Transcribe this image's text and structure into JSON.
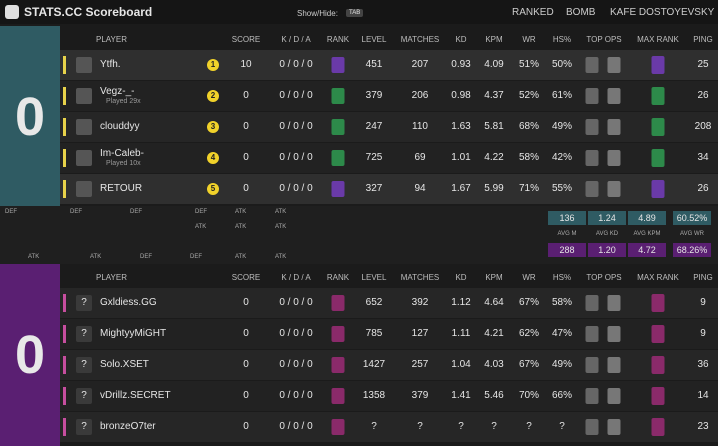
{
  "header": {
    "title": "STATS.CC Scoreboard",
    "show_hide": "Show/Hide:",
    "key": "TAB",
    "mode": "RANKED",
    "type": "BOMB",
    "map": "KAFE DOSTOYEVSKY"
  },
  "columns": [
    "PLAYER",
    "SCORE",
    "K / D / A",
    "RANK",
    "LEVEL",
    "MATCHES",
    "KD",
    "KPM",
    "WR",
    "HS%",
    "TOP OPS",
    "MAX RANK",
    "PING"
  ],
  "teams": [
    {
      "score": "0",
      "rows": [
        {
          "position": "1",
          "name": "Ytfh.",
          "note": null,
          "score": "10",
          "kda": "0 / 0 / 0",
          "level": "451",
          "matches": "207",
          "kd": "0.93",
          "kpm": "4.09",
          "wr": "51%",
          "hs": "50%",
          "ping": "25"
        },
        {
          "position": "2",
          "name": "Vegz-_-",
          "note": "Played 29x",
          "score": "0",
          "kda": "0 / 0 / 0",
          "level": "379",
          "matches": "206",
          "kd": "0.98",
          "kpm": "4.37",
          "wr": "52%",
          "hs": "61%",
          "ping": "26"
        },
        {
          "position": "3",
          "name": "clouddyy",
          "note": null,
          "score": "0",
          "kda": "0 / 0 / 0",
          "level": "247",
          "matches": "110",
          "kd": "1.63",
          "kpm": "5.81",
          "wr": "68%",
          "hs": "49%",
          "ping": "208"
        },
        {
          "position": "4",
          "name": "Im-Caleb-",
          "note": "Played 10x",
          "score": "0",
          "kda": "0 / 0 / 0",
          "level": "725",
          "matches": "69",
          "kd": "1.01",
          "kpm": "4.22",
          "wr": "58%",
          "hs": "42%",
          "ping": "34"
        },
        {
          "position": "5",
          "name": "RETOUR",
          "note": null,
          "score": "0",
          "kda": "0 / 0 / 0",
          "level": "327",
          "matches": "94",
          "kd": "1.67",
          "kpm": "5.99",
          "wr": "71%",
          "hs": "55%",
          "ping": "26"
        }
      ]
    },
    {
      "score": "0",
      "rows": [
        {
          "position": "?",
          "name": "Gxldiess.GG",
          "note": null,
          "score": "0",
          "kda": "0 / 0 / 0",
          "level": "652",
          "matches": "392",
          "kd": "1.12",
          "kpm": "4.64",
          "wr": "67%",
          "hs": "58%",
          "ping": "9"
        },
        {
          "position": "?",
          "name": "MightyyMiGHT",
          "note": null,
          "score": "0",
          "kda": "0 / 0 / 0",
          "level": "785",
          "matches": "127",
          "kd": "1.11",
          "kpm": "4.21",
          "wr": "62%",
          "hs": "47%",
          "ping": "9"
        },
        {
          "position": "?",
          "name": "Solo.XSET",
          "note": null,
          "score": "0",
          "kda": "0 / 0 / 0",
          "level": "1427",
          "matches": "257",
          "kd": "1.04",
          "kpm": "4.03",
          "wr": "67%",
          "hs": "49%",
          "ping": "36"
        },
        {
          "position": "?",
          "name": "vDrillz.SECRET",
          "note": null,
          "score": "0",
          "kda": "0 / 0 / 0",
          "level": "1358",
          "matches": "379",
          "kd": "1.41",
          "kpm": "5.46",
          "wr": "70%",
          "hs": "66%",
          "ping": "14"
        },
        {
          "position": "?",
          "name": "bronzeO7ter",
          "note": null,
          "score": "0",
          "kda": "0 / 0 / 0",
          "level": "?",
          "matches": "?",
          "kd": "?",
          "kpm": "?",
          "wr": "?",
          "hs": "?",
          "ping": "23"
        }
      ]
    }
  ],
  "rounds": {
    "top": [
      "DEF",
      "DEF",
      "DEF",
      "DEF",
      "ATK",
      "ATK"
    ],
    "middle": [
      "ATK",
      "ATK",
      "ATK"
    ],
    "bottom": [
      "ATK",
      "ATK",
      "DEF",
      "DEF",
      "ATK",
      "ATK"
    ]
  },
  "averages": {
    "labels": [
      "AVG M",
      "AVG KD",
      "AVG KPM",
      "AVG WR"
    ],
    "team1": [
      "136",
      "1.24",
      "4.89",
      "60.52%"
    ],
    "team2": [
      "288",
      "1.20",
      "4.72",
      "68.26%"
    ]
  }
}
